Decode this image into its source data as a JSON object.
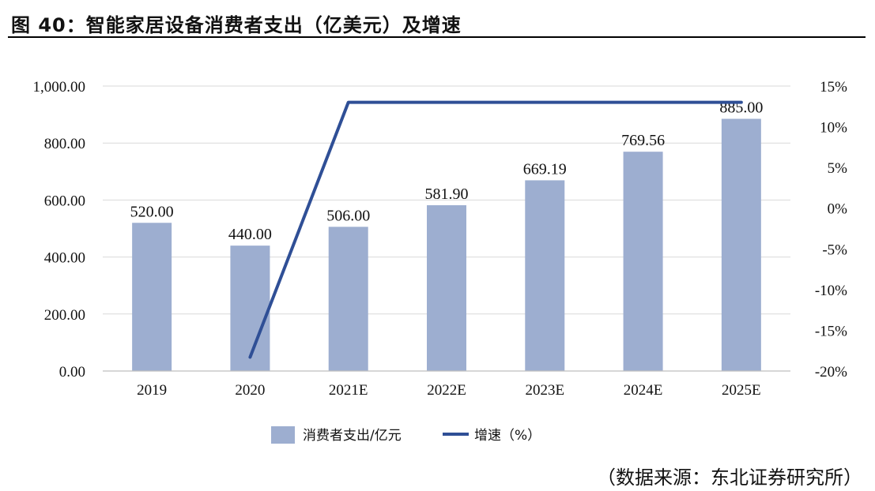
{
  "title": "图 40：智能家居设备消费者支出（亿美元）及增速",
  "source": "（数据来源：东北证券研究所）",
  "chart_data": {
    "type": "bar",
    "categories": [
      "2019",
      "2020",
      "2021E",
      "2022E",
      "2023E",
      "2024E",
      "2025E"
    ],
    "series": [
      {
        "name": "消费者支出/亿元",
        "type": "bar",
        "axis": "left",
        "values": [
          520.0,
          440.0,
          506.0,
          581.9,
          669.19,
          769.56,
          885.0
        ],
        "labels": [
          "520.00",
          "440.00",
          "506.00",
          "581.90",
          "669.19",
          "769.56",
          "885.00"
        ],
        "color": "#9daed0"
      },
      {
        "name": "增速（%）",
        "type": "line",
        "axis": "right",
        "values": [
          null,
          -18.3,
          13.0,
          13.0,
          13.0,
          13.0,
          13.0
        ],
        "color": "#2f4f96"
      }
    ],
    "ylim": [
      0,
      1000
    ],
    "yticks": [
      "0.00",
      "200.00",
      "400.00",
      "600.00",
      "800.00",
      "1,000.00"
    ],
    "y2lim": [
      -20,
      15
    ],
    "y2ticks": [
      "-20%",
      "-15%",
      "-10%",
      "-5%",
      "0%",
      "5%",
      "10%",
      "15%"
    ],
    "grid": true,
    "legend": "bottom-center"
  }
}
